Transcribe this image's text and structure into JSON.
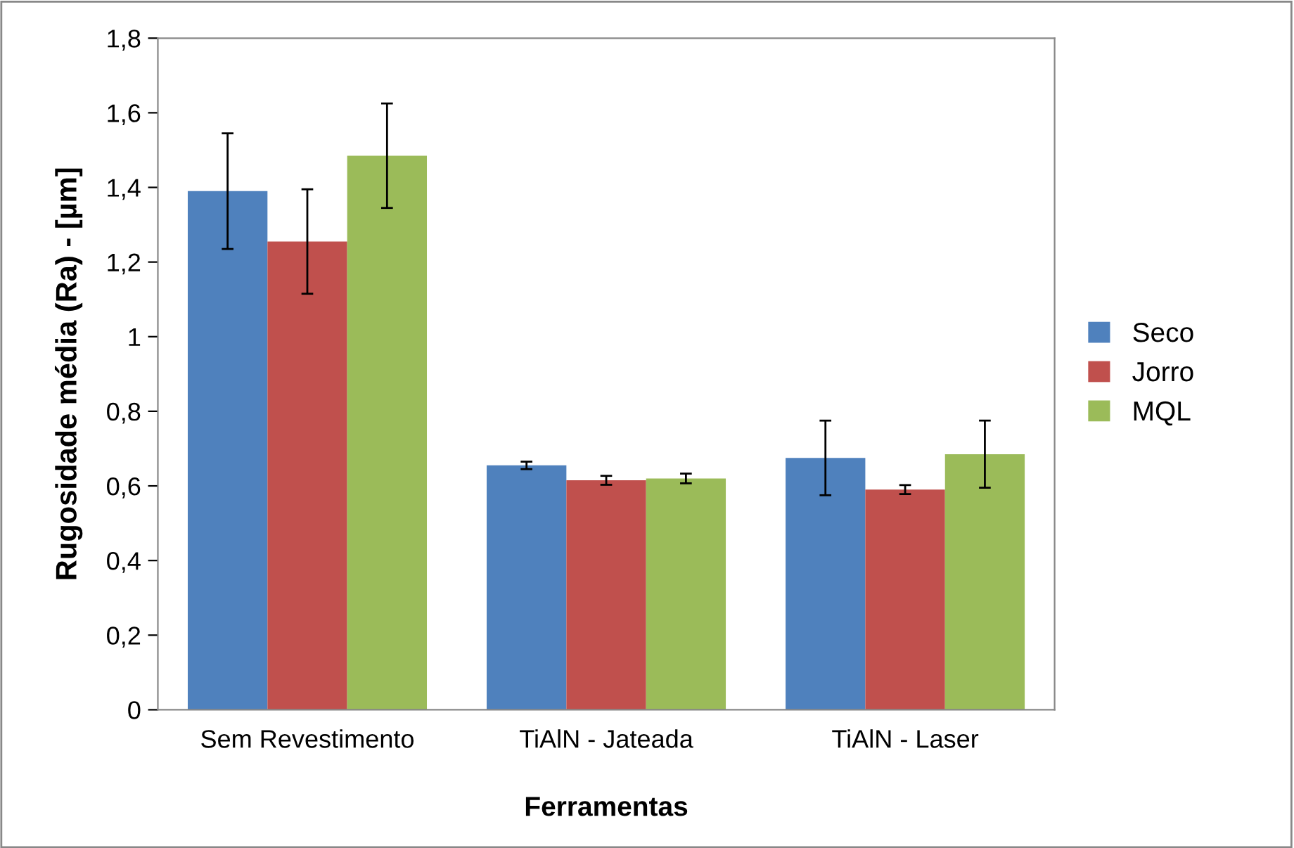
{
  "chart_data": {
    "type": "bar",
    "xlabel": "Ferramentas",
    "ylabel": "Rugosidade média (Ra) - [µm]",
    "categories": [
      "Sem Revestimento",
      "TiAlN - Jateada",
      "TiAlN - Laser"
    ],
    "series": [
      {
        "name": "Seco",
        "color": "#4f81bd",
        "values": [
          1.39,
          0.655,
          0.675
        ],
        "errors": [
          0.155,
          0.01,
          0.1
        ]
      },
      {
        "name": "Jorro",
        "color": "#c0504d",
        "values": [
          1.255,
          0.615,
          0.59
        ],
        "errors": [
          0.14,
          0.012,
          0.012
        ]
      },
      {
        "name": "MQL",
        "color": "#9bbb59",
        "values": [
          1.485,
          0.62,
          0.685
        ],
        "errors": [
          0.14,
          0.013,
          0.09
        ]
      }
    ],
    "ylim": [
      0,
      1.8
    ],
    "yticks": [
      0,
      {
        "value": 0.2,
        "label": "0,2"
      },
      {
        "value": 0.4,
        "label": "0,4"
      },
      {
        "value": 0.6,
        "label": "0,6"
      },
      {
        "value": 0.8,
        "label": "0,8"
      },
      1,
      {
        "value": 1.2,
        "label": "1,2"
      },
      {
        "value": 1.4,
        "label": "1,4"
      },
      {
        "value": 1.6,
        "label": "1,6"
      },
      {
        "value": 1.8,
        "label": "1,8"
      }
    ],
    "grid": false,
    "legend": "right"
  }
}
